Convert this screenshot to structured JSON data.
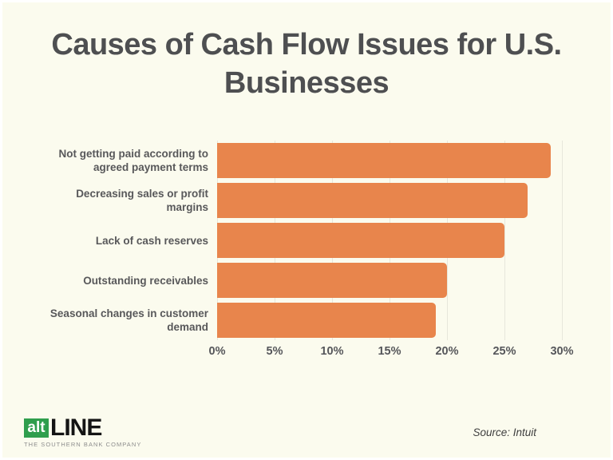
{
  "page": {
    "background": "#FBFBEE"
  },
  "title": "Causes of Cash Flow Issues for U.S. Businesses",
  "chart_data": {
    "type": "bar",
    "orientation": "horizontal",
    "title": "Causes of Cash Flow Issues for U.S. Businesses",
    "categories": [
      "Not getting paid according to agreed payment terms",
      "Decreasing sales or profit margins",
      "Lack of cash reserves",
      "Outstanding receivables",
      "Seasonal changes in customer demand"
    ],
    "values": [
      29,
      27,
      25,
      20,
      19
    ],
    "unit": "%",
    "xlabel": "",
    "ylabel": "",
    "x_ticks": [
      "0%",
      "5%",
      "10%",
      "15%",
      "20%",
      "25%",
      "30%"
    ],
    "x_tick_values": [
      0,
      5,
      10,
      15,
      20,
      25,
      30
    ],
    "xlim": [
      0,
      33
    ],
    "grid": true,
    "legend": false,
    "bar_color": "#E8854C",
    "gridline_color": "#E7E7DB"
  },
  "footer": {
    "source": "Source: Intuit"
  },
  "logo": {
    "alt_text": "alt",
    "line_text": "LINE",
    "tagline": "THE SOUTHERN BANK COMPANY",
    "green": "#2F9E4D"
  }
}
